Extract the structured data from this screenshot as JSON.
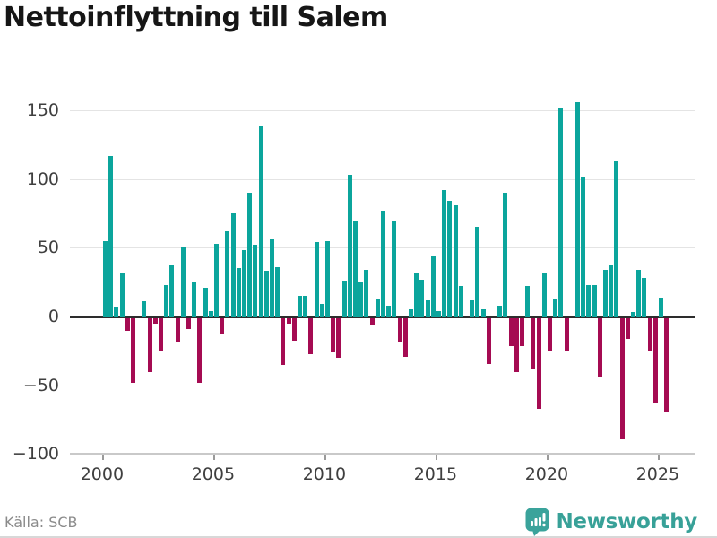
{
  "title": "Nettoinflyttning till Salem",
  "source": "Källa: SCB",
  "branding": {
    "name": "Newsworthy",
    "icon": "newsworthy-bars-bubble",
    "color": "#38a198"
  },
  "colors": {
    "positive_bar": "#0ba59c",
    "negative_bar": "#a50b52",
    "grid": "#e4e4e4",
    "zero_line": "#2d2d2d",
    "baseline": "#c9c9c9",
    "axis_text": "#3f3f3f",
    "title_text": "#161616",
    "source_text": "#8b8b8b"
  },
  "chart_data": {
    "type": "bar",
    "title": "Nettoinflyttning till Salem",
    "xlabel": "",
    "ylabel": "",
    "frequency": "quarterly",
    "start_period": "2000-Q1",
    "end_period": "2025-Q2",
    "values": [
      55,
      117,
      7,
      31,
      -9,
      -47,
      0,
      11,
      -39,
      -4,
      -24,
      23,
      38,
      -17,
      51,
      -8,
      25,
      -47,
      21,
      4,
      53,
      -12,
      62,
      75,
      35,
      48,
      90,
      52,
      139,
      33,
      56,
      36,
      -34,
      -4,
      -16,
      15,
      15,
      -26,
      54,
      9,
      55,
      -25,
      -29,
      26,
      103,
      70,
      25,
      34,
      -5,
      13,
      77,
      8,
      69,
      -17,
      -28,
      5,
      32,
      27,
      12,
      44,
      4,
      92,
      84,
      81,
      22,
      0,
      12,
      65,
      5,
      -33,
      0,
      8,
      90,
      -20,
      -39,
      -20,
      22,
      -37,
      -66,
      32,
      -24,
      13,
      152,
      -24,
      0,
      156,
      102,
      23,
      23,
      -43,
      34,
      38,
      113,
      -88,
      -15,
      3,
      34,
      28,
      -24,
      -61,
      14,
      -68
    ],
    "x_tick_years": [
      2000,
      2005,
      2010,
      2015,
      2020,
      2025
    ],
    "x_tick_labels": [
      "2000",
      "2005",
      "2010",
      "2015",
      "2020",
      "2025"
    ],
    "y_tick_values": [
      150,
      100,
      50,
      0,
      -50,
      -100
    ],
    "y_tick_labels": [
      "150",
      "100",
      "50",
      "0",
      "−50",
      "−100"
    ],
    "ylim": [
      -100,
      160
    ],
    "grid": "horizontal",
    "legend": "none"
  }
}
